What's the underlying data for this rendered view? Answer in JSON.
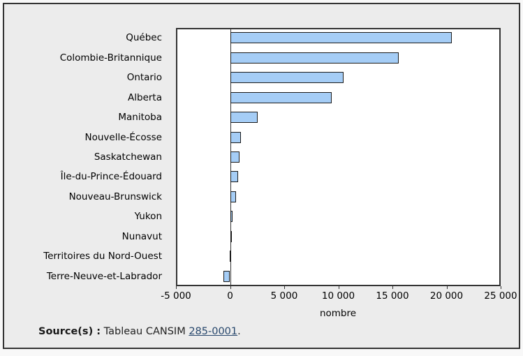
{
  "chart_data": {
    "type": "bar",
    "orientation": "horizontal",
    "title": "",
    "xlabel": "nombre",
    "ylabel": "",
    "xlim": [
      -5000,
      25000
    ],
    "grid": false,
    "legend": "none",
    "categories": [
      "Québec",
      "Colombie-Britannique",
      "Ontario",
      "Alberta",
      "Manitoba",
      "Nouvelle-Écosse",
      "Saskatchewan",
      "Île-du-Prince-Édouard",
      "Nouveau-Brunswick",
      "Yukon",
      "Nunavut",
      "Territoires du Nord-Ouest",
      "Terre-Neuve-et-Labrador"
    ],
    "values": [
      20500,
      15600,
      10500,
      9400,
      2550,
      1000,
      900,
      730,
      580,
      250,
      130,
      -20,
      -600
    ],
    "x_ticks": [
      {
        "value": -5000,
        "label": "-5 000"
      },
      {
        "value": 0,
        "label": "0"
      },
      {
        "value": 5000,
        "label": "5 000"
      },
      {
        "value": 10000,
        "label": "10 000"
      },
      {
        "value": 15000,
        "label": "15 000"
      },
      {
        "value": 20000,
        "label": "20 000"
      },
      {
        "value": 25000,
        "label": "25 000"
      }
    ],
    "bar_color": "#a5cdf6",
    "bar_border_color": "#1a1a1a",
    "axis_color": "#333333"
  },
  "source": {
    "prefix": "Source(s) :",
    "text": " Tableau CANSIM ",
    "link_label": "285-0001",
    "suffix": "."
  }
}
